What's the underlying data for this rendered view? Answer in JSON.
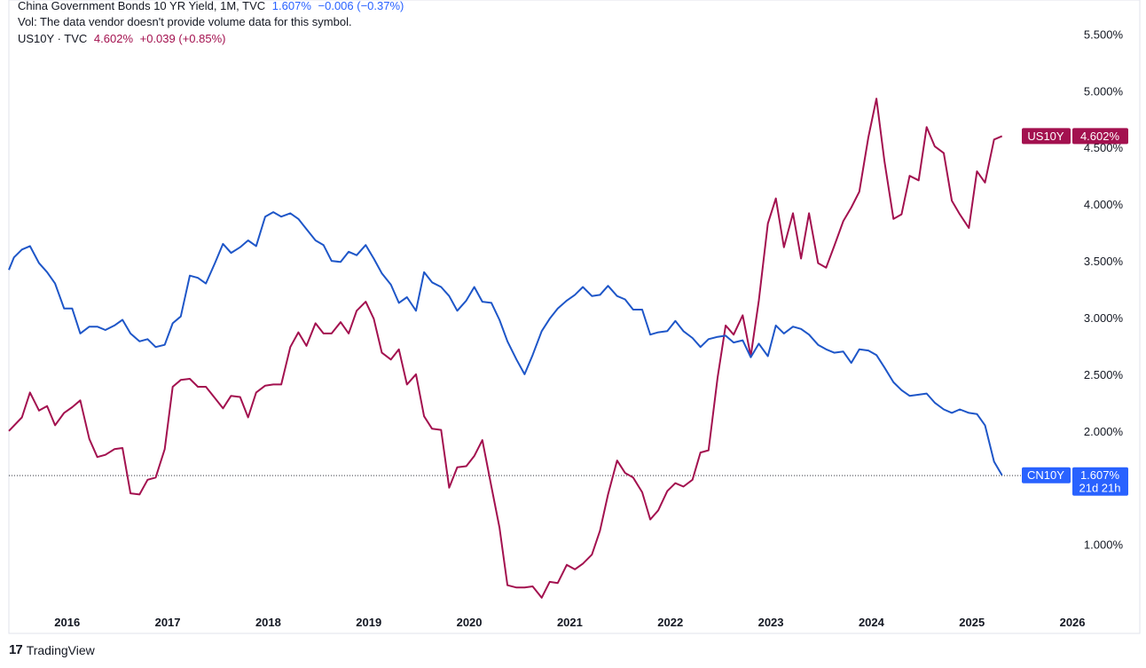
{
  "legend": {
    "cn": {
      "title": "China Government Bonds 10 YR Yield, 1M, TVC",
      "last": "1.607%",
      "change": "−0.006 (−0.37%)"
    },
    "vol": "Vol: The data vendor doesn't provide volume data for this symbol.",
    "us": {
      "title": "US10Y · TVC",
      "last": "4.602%",
      "change": "+0.039 (+0.85%)"
    }
  },
  "labels": {
    "us_tag": "US10Y",
    "us_value": "4.602%",
    "cn_tag": "CN10Y",
    "cn_value": "1.607%",
    "cn_countdown": "21d 21h"
  },
  "footer": {
    "brand": "TradingView"
  },
  "chart_data": {
    "type": "line",
    "y_tick_labels": [
      "1.000%",
      "1.500%",
      "2.000%",
      "2.500%",
      "3.000%",
      "3.500%",
      "4.000%",
      "4.500%",
      "5.000%",
      "5.500%"
    ],
    "x_tick_labels": [
      "2016",
      "2017",
      "2018",
      "2019",
      "2020",
      "2021",
      "2022",
      "2023",
      "2024",
      "2025",
      "2026"
    ],
    "ylim": [
      0.45,
      5.8
    ],
    "xlim": [
      2015.42,
      2026.67
    ],
    "grid": false,
    "price_line": 1.607,
    "series": [
      {
        "name": "US10Y",
        "color": "#a3114f",
        "points": [
          [
            2015.42,
            2.0
          ],
          [
            2015.55,
            2.12
          ],
          [
            2015.63,
            2.34
          ],
          [
            2015.72,
            2.18
          ],
          [
            2015.8,
            2.22
          ],
          [
            2015.88,
            2.05
          ],
          [
            2015.97,
            2.16
          ],
          [
            2016.05,
            2.21
          ],
          [
            2016.13,
            2.27
          ],
          [
            2016.22,
            1.93
          ],
          [
            2016.3,
            1.77
          ],
          [
            2016.38,
            1.79
          ],
          [
            2016.47,
            1.84
          ],
          [
            2016.55,
            1.85
          ],
          [
            2016.63,
            1.45
          ],
          [
            2016.72,
            1.44
          ],
          [
            2016.8,
            1.57
          ],
          [
            2016.88,
            1.59
          ],
          [
            2016.97,
            1.84
          ],
          [
            2017.05,
            2.39
          ],
          [
            2017.13,
            2.45
          ],
          [
            2017.22,
            2.46
          ],
          [
            2017.3,
            2.39
          ],
          [
            2017.38,
            2.39
          ],
          [
            2017.47,
            2.29
          ],
          [
            2017.55,
            2.2
          ],
          [
            2017.63,
            2.31
          ],
          [
            2017.72,
            2.3
          ],
          [
            2017.8,
            2.12
          ],
          [
            2017.88,
            2.34
          ],
          [
            2017.97,
            2.4
          ],
          [
            2018.05,
            2.41
          ],
          [
            2018.13,
            2.41
          ],
          [
            2018.22,
            2.74
          ],
          [
            2018.3,
            2.87
          ],
          [
            2018.38,
            2.75
          ],
          [
            2018.47,
            2.95
          ],
          [
            2018.55,
            2.86
          ],
          [
            2018.63,
            2.86
          ],
          [
            2018.72,
            2.96
          ],
          [
            2018.8,
            2.86
          ],
          [
            2018.88,
            3.06
          ],
          [
            2018.97,
            3.14
          ],
          [
            2019.05,
            2.99
          ],
          [
            2019.13,
            2.69
          ],
          [
            2019.22,
            2.63
          ],
          [
            2019.3,
            2.72
          ],
          [
            2019.38,
            2.41
          ],
          [
            2019.47,
            2.5
          ],
          [
            2019.55,
            2.13
          ],
          [
            2019.63,
            2.02
          ],
          [
            2019.72,
            2.01
          ],
          [
            2019.8,
            1.5
          ],
          [
            2019.88,
            1.68
          ],
          [
            2019.97,
            1.69
          ],
          [
            2020.05,
            1.78
          ],
          [
            2020.13,
            1.92
          ],
          [
            2020.22,
            1.51
          ],
          [
            2020.3,
            1.15
          ],
          [
            2020.38,
            0.64
          ],
          [
            2020.47,
            0.62
          ],
          [
            2020.55,
            0.62
          ],
          [
            2020.63,
            0.63
          ],
          [
            2020.72,
            0.53
          ],
          [
            2020.8,
            0.67
          ],
          [
            2020.88,
            0.66
          ],
          [
            2020.97,
            0.82
          ],
          [
            2021.05,
            0.78
          ],
          [
            2021.13,
            0.83
          ],
          [
            2021.22,
            0.91
          ],
          [
            2021.3,
            1.12
          ],
          [
            2021.38,
            1.44
          ],
          [
            2021.47,
            1.74
          ],
          [
            2021.55,
            1.63
          ],
          [
            2021.63,
            1.59
          ],
          [
            2021.72,
            1.46
          ],
          [
            2021.8,
            1.22
          ],
          [
            2021.88,
            1.3
          ],
          [
            2021.97,
            1.47
          ],
          [
            2022.05,
            1.54
          ],
          [
            2022.13,
            1.51
          ],
          [
            2022.22,
            1.57
          ],
          [
            2022.3,
            1.81
          ],
          [
            2022.38,
            1.83
          ],
          [
            2022.47,
            2.47
          ],
          [
            2022.55,
            2.93
          ],
          [
            2022.63,
            2.85
          ],
          [
            2022.72,
            3.02
          ],
          [
            2022.8,
            2.66
          ],
          [
            2022.88,
            3.15
          ],
          [
            2022.97,
            3.83
          ],
          [
            2023.05,
            4.05
          ],
          [
            2023.13,
            3.62
          ],
          [
            2023.22,
            3.92
          ],
          [
            2023.3,
            3.52
          ],
          [
            2023.38,
            3.92
          ],
          [
            2023.47,
            3.48
          ],
          [
            2023.55,
            3.44
          ],
          [
            2023.63,
            3.63
          ],
          [
            2023.72,
            3.85
          ],
          [
            2023.8,
            3.97
          ],
          [
            2023.88,
            4.11
          ],
          [
            2023.97,
            4.59
          ],
          [
            2024.05,
            4.93
          ],
          [
            2024.13,
            4.38
          ],
          [
            2024.22,
            3.87
          ],
          [
            2024.3,
            3.91
          ],
          [
            2024.38,
            4.25
          ],
          [
            2024.47,
            4.21
          ],
          [
            2024.55,
            4.68
          ],
          [
            2024.63,
            4.51
          ],
          [
            2024.72,
            4.45
          ],
          [
            2024.8,
            4.03
          ],
          [
            2024.88,
            3.91
          ],
          [
            2024.97,
            3.79
          ],
          [
            2025.05,
            4.29
          ],
          [
            2025.13,
            4.19
          ],
          [
            2025.22,
            4.57
          ],
          [
            2025.3,
            4.6
          ]
        ]
      },
      {
        "name": "CN10Y",
        "color": "#1e56c8",
        "points": [
          [
            2015.42,
            3.42
          ],
          [
            2015.47,
            3.53
          ],
          [
            2015.55,
            3.6
          ],
          [
            2015.63,
            3.63
          ],
          [
            2015.72,
            3.48
          ],
          [
            2015.8,
            3.4
          ],
          [
            2015.88,
            3.3
          ],
          [
            2015.97,
            3.08
          ],
          [
            2016.05,
            3.08
          ],
          [
            2016.13,
            2.86
          ],
          [
            2016.22,
            2.92
          ],
          [
            2016.3,
            2.92
          ],
          [
            2016.38,
            2.89
          ],
          [
            2016.47,
            2.93
          ],
          [
            2016.55,
            2.98
          ],
          [
            2016.63,
            2.86
          ],
          [
            2016.72,
            2.79
          ],
          [
            2016.8,
            2.81
          ],
          [
            2016.88,
            2.74
          ],
          [
            2016.97,
            2.76
          ],
          [
            2017.05,
            2.95
          ],
          [
            2017.13,
            3.01
          ],
          [
            2017.22,
            3.37
          ],
          [
            2017.3,
            3.35
          ],
          [
            2017.38,
            3.3
          ],
          [
            2017.47,
            3.48
          ],
          [
            2017.55,
            3.65
          ],
          [
            2017.63,
            3.57
          ],
          [
            2017.72,
            3.62
          ],
          [
            2017.8,
            3.68
          ],
          [
            2017.88,
            3.63
          ],
          [
            2017.97,
            3.89
          ],
          [
            2018.05,
            3.93
          ],
          [
            2018.13,
            3.89
          ],
          [
            2018.22,
            3.92
          ],
          [
            2018.3,
            3.87
          ],
          [
            2018.38,
            3.78
          ],
          [
            2018.47,
            3.68
          ],
          [
            2018.55,
            3.64
          ],
          [
            2018.63,
            3.5
          ],
          [
            2018.72,
            3.49
          ],
          [
            2018.8,
            3.58
          ],
          [
            2018.88,
            3.55
          ],
          [
            2018.97,
            3.64
          ],
          [
            2019.05,
            3.52
          ],
          [
            2019.13,
            3.39
          ],
          [
            2019.22,
            3.29
          ],
          [
            2019.3,
            3.13
          ],
          [
            2019.38,
            3.18
          ],
          [
            2019.47,
            3.06
          ],
          [
            2019.55,
            3.4
          ],
          [
            2019.63,
            3.31
          ],
          [
            2019.72,
            3.27
          ],
          [
            2019.8,
            3.19
          ],
          [
            2019.88,
            3.06
          ],
          [
            2019.97,
            3.15
          ],
          [
            2020.05,
            3.27
          ],
          [
            2020.13,
            3.14
          ],
          [
            2020.22,
            3.13
          ],
          [
            2020.3,
            2.98
          ],
          [
            2020.38,
            2.79
          ],
          [
            2020.47,
            2.63
          ],
          [
            2020.55,
            2.5
          ],
          [
            2020.63,
            2.67
          ],
          [
            2020.72,
            2.88
          ],
          [
            2020.8,
            2.99
          ],
          [
            2020.88,
            3.08
          ],
          [
            2020.97,
            3.15
          ],
          [
            2021.05,
            3.2
          ],
          [
            2021.13,
            3.27
          ],
          [
            2021.22,
            3.19
          ],
          [
            2021.3,
            3.2
          ],
          [
            2021.38,
            3.28
          ],
          [
            2021.47,
            3.19
          ],
          [
            2021.55,
            3.16
          ],
          [
            2021.63,
            3.07
          ],
          [
            2021.72,
            3.07
          ],
          [
            2021.8,
            2.85
          ],
          [
            2021.88,
            2.87
          ],
          [
            2021.97,
            2.88
          ],
          [
            2022.05,
            2.97
          ],
          [
            2022.13,
            2.88
          ],
          [
            2022.22,
            2.82
          ],
          [
            2022.3,
            2.74
          ],
          [
            2022.38,
            2.81
          ],
          [
            2022.47,
            2.83
          ],
          [
            2022.55,
            2.84
          ],
          [
            2022.63,
            2.78
          ],
          [
            2022.72,
            2.8
          ],
          [
            2022.8,
            2.65
          ],
          [
            2022.88,
            2.77
          ],
          [
            2022.97,
            2.66
          ],
          [
            2023.05,
            2.93
          ],
          [
            2023.13,
            2.86
          ],
          [
            2023.22,
            2.92
          ],
          [
            2023.3,
            2.9
          ],
          [
            2023.38,
            2.85
          ],
          [
            2023.47,
            2.76
          ],
          [
            2023.55,
            2.72
          ],
          [
            2023.63,
            2.69
          ],
          [
            2023.72,
            2.7
          ],
          [
            2023.8,
            2.6
          ],
          [
            2023.88,
            2.72
          ],
          [
            2023.97,
            2.71
          ],
          [
            2024.05,
            2.67
          ],
          [
            2024.13,
            2.56
          ],
          [
            2024.22,
            2.43
          ],
          [
            2024.3,
            2.36
          ],
          [
            2024.38,
            2.31
          ],
          [
            2024.47,
            2.32
          ],
          [
            2024.55,
            2.33
          ],
          [
            2024.63,
            2.25
          ],
          [
            2024.72,
            2.19
          ],
          [
            2024.8,
            2.16
          ],
          [
            2024.88,
            2.19
          ],
          [
            2024.97,
            2.16
          ],
          [
            2025.05,
            2.15
          ],
          [
            2025.13,
            2.05
          ],
          [
            2025.22,
            1.73
          ],
          [
            2025.3,
            1.61
          ]
        ]
      }
    ]
  }
}
